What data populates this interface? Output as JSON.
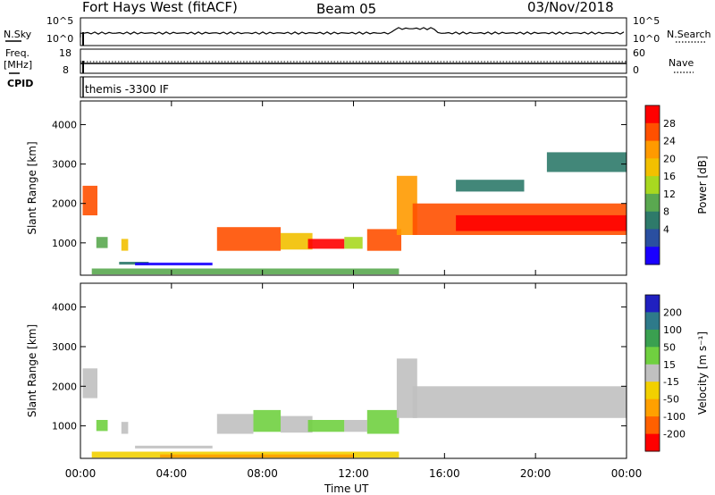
{
  "header": {
    "station": "Fort Hays West (fitACF)",
    "beam": "Beam 05",
    "date": "03/Nov/2018"
  },
  "noise_panel": {
    "left_label": "N.Sky",
    "right_label": "N.Search",
    "left_ticks": [
      "10^5",
      "10^0"
    ],
    "right_ticks": [
      "10^5",
      "10^0"
    ]
  },
  "freq_panel": {
    "left_label": "Freq.",
    "left_unit": "[MHz]",
    "right_label": "Nave",
    "left_ticks": [
      "18",
      "8"
    ],
    "right_ticks": [
      "60",
      "0"
    ]
  },
  "cpid_panel": {
    "label": "CPID",
    "program": "themis -3300 IF"
  },
  "chart_data": [
    {
      "type": "heatmap",
      "quantity": "Power",
      "ylabel": "Slant Range [km]",
      "colorbar_label": "Power [dB]",
      "colorbar_ticks": [
        "28",
        "24",
        "20",
        "16",
        "12",
        "8",
        "4"
      ],
      "colorbar_colors": [
        "#ff0000",
        "#ff5000",
        "#ff9a00",
        "#f2c000",
        "#a8d820",
        "#5aa850",
        "#2e7a6a",
        "#2a4fa0",
        "#1a00ff"
      ],
      "yticks": [
        "4000",
        "3000",
        "2000",
        "1000"
      ],
      "ylim": [
        180,
        4600
      ],
      "xlim": [
        0,
        24
      ],
      "regions": [
        {
          "t0": 0.1,
          "t1": 0.75,
          "r0": 1700,
          "r1": 2450,
          "color": "#ff5000"
        },
        {
          "t0": 0.7,
          "t1": 1.2,
          "r0": 870,
          "r1": 1150,
          "color": "#5aa850"
        },
        {
          "t0": 1.8,
          "t1": 2.1,
          "r0": 800,
          "r1": 1100,
          "color": "#f2c000"
        },
        {
          "t0": 1.7,
          "t1": 3.0,
          "r0": 450,
          "r1": 520,
          "color": "#2e7a6a"
        },
        {
          "t0": 2.4,
          "t1": 5.8,
          "r0": 430,
          "r1": 500,
          "color": "#1a00ff"
        },
        {
          "t0": 6.0,
          "t1": 8.8,
          "r0": 800,
          "r1": 1400,
          "color": "#ff5000"
        },
        {
          "t0": 8.8,
          "t1": 10.2,
          "r0": 830,
          "r1": 1250,
          "color": "#f2c000"
        },
        {
          "t0": 10.0,
          "t1": 11.6,
          "r0": 850,
          "r1": 1100,
          "color": "#ff0000"
        },
        {
          "t0": 11.6,
          "t1": 12.4,
          "r0": 850,
          "r1": 1150,
          "color": "#a8d820"
        },
        {
          "t0": 12.6,
          "t1": 14.1,
          "r0": 800,
          "r1": 1350,
          "color": "#ff5000"
        },
        {
          "t0": 13.9,
          "t1": 14.8,
          "r0": 1200,
          "r1": 2700,
          "color": "#ff9a00"
        },
        {
          "t0": 14.6,
          "t1": 24.0,
          "r0": 1200,
          "r1": 2000,
          "color": "#ff5000"
        },
        {
          "t0": 16.5,
          "t1": 24.0,
          "r0": 1300,
          "r1": 1700,
          "color": "#ff0000"
        },
        {
          "t0": 16.5,
          "t1": 19.5,
          "r0": 2300,
          "r1": 2600,
          "color": "#2e7a6a"
        },
        {
          "t0": 20.5,
          "t1": 24.0,
          "r0": 2800,
          "r1": 3300,
          "color": "#2e7a6a"
        },
        {
          "t0": 0.5,
          "t1": 14.0,
          "r0": 200,
          "r1": 350,
          "color": "#5aa850"
        }
      ]
    },
    {
      "type": "heatmap",
      "quantity": "Velocity",
      "ylabel": "Slant Range [km]",
      "colorbar_label": "Velocity [m s⁻¹]",
      "colorbar_ticks": [
        "200",
        "100",
        "50",
        "15",
        "-15",
        "-50",
        "-100",
        "-200"
      ],
      "colorbar_colors": [
        "#2020c0",
        "#2e7a8a",
        "#3aa050",
        "#70d040",
        "#c0c0c0",
        "#f2d000",
        "#ffa000",
        "#ff6000",
        "#ff0000"
      ],
      "yticks": [
        "4000",
        "3000",
        "2000",
        "1000"
      ],
      "ylim": [
        180,
        4600
      ],
      "xlim": [
        0,
        24
      ],
      "regions": [
        {
          "t0": 0.1,
          "t1": 0.75,
          "r0": 1700,
          "r1": 2450,
          "color": "#c0c0c0"
        },
        {
          "t0": 0.7,
          "t1": 1.2,
          "r0": 870,
          "r1": 1150,
          "color": "#70d040"
        },
        {
          "t0": 1.8,
          "t1": 2.1,
          "r0": 800,
          "r1": 1100,
          "color": "#c0c0c0"
        },
        {
          "t0": 2.4,
          "t1": 5.8,
          "r0": 430,
          "r1": 500,
          "color": "#c0c0c0"
        },
        {
          "t0": 6.0,
          "t1": 7.6,
          "r0": 800,
          "r1": 1300,
          "color": "#c0c0c0"
        },
        {
          "t0": 7.6,
          "t1": 8.8,
          "r0": 850,
          "r1": 1400,
          "color": "#70d040"
        },
        {
          "t0": 8.8,
          "t1": 10.2,
          "r0": 830,
          "r1": 1250,
          "color": "#c0c0c0"
        },
        {
          "t0": 10.0,
          "t1": 11.6,
          "r0": 850,
          "r1": 1150,
          "color": "#70d040"
        },
        {
          "t0": 11.6,
          "t1": 12.6,
          "r0": 850,
          "r1": 1150,
          "color": "#c0c0c0"
        },
        {
          "t0": 12.6,
          "t1": 14.0,
          "r0": 800,
          "r1": 1400,
          "color": "#70d040"
        },
        {
          "t0": 13.9,
          "t1": 14.8,
          "r0": 1200,
          "r1": 2700,
          "color": "#c0c0c0"
        },
        {
          "t0": 14.6,
          "t1": 24.0,
          "r0": 1200,
          "r1": 2000,
          "color": "#c0c0c0"
        },
        {
          "t0": 0.5,
          "t1": 14.0,
          "r0": 200,
          "r1": 350,
          "color": "#f2d000"
        },
        {
          "t0": 3.5,
          "t1": 12.0,
          "r0": 200,
          "r1": 280,
          "color": "#ffa000"
        }
      ]
    }
  ],
  "xaxis": {
    "ticks": [
      "00:00",
      "04:00",
      "08:00",
      "12:00",
      "16:00",
      "20:00",
      "00:00"
    ],
    "label": "Time UT"
  }
}
